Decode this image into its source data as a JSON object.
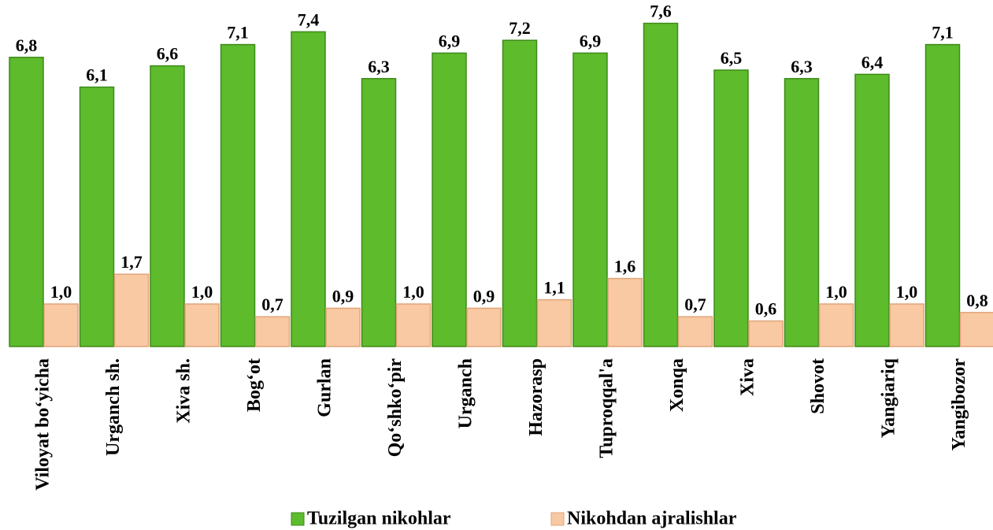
{
  "chart_data": {
    "type": "bar",
    "categories": [
      "Viloyat bo‘yicha",
      "Urganch sh.",
      "Xiva sh.",
      "Bog‘ot",
      "Gurlan",
      "Qo‘shko‘pir",
      "Urganch",
      "Hazorasp",
      "Tuproqqal'a",
      "Xonqa",
      "Xiva",
      "Shovot",
      "Yangiariq",
      "Yangibozor"
    ],
    "series": [
      {
        "name": "Tuzilgan nikohlar",
        "color": "#5dbb2c",
        "values": [
          6.8,
          6.1,
          6.6,
          7.1,
          7.4,
          6.3,
          6.9,
          7.2,
          6.9,
          7.6,
          6.5,
          6.3,
          6.4,
          7.1
        ],
        "value_labels": [
          "6,8",
          "6,1",
          "6,6",
          "7,1",
          "7,4",
          "6,3",
          "6,9",
          "7,2",
          "6,9",
          "7,6",
          "6,5",
          "6,3",
          "6,4",
          "7,1"
        ]
      },
      {
        "name": "Nikohdan ajralishlar",
        "color": "#f8c9a2",
        "values": [
          1.0,
          1.7,
          1.0,
          0.7,
          0.9,
          1.0,
          0.9,
          1.1,
          1.6,
          0.7,
          0.6,
          1.0,
          1.0,
          0.8
        ],
        "value_labels": [
          "1,0",
          "1,7",
          "1,0",
          "0,7",
          "0,9",
          "1,0",
          "0,9",
          "1,1",
          "1,6",
          "0,7",
          "0,6",
          "1,0",
          "1,0",
          "0,8"
        ]
      }
    ],
    "ylim": [
      0,
      8
    ]
  }
}
